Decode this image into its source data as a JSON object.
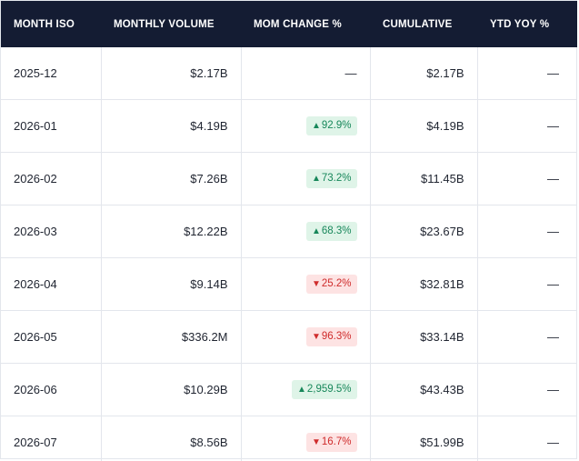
{
  "columns": [
    "MONTH ISO",
    "MONTHLY VOLUME",
    "MOM CHANGE %",
    "CUMULATIVE",
    "YTD YOY %"
  ],
  "rows": [
    {
      "month": "2025-12",
      "volume": "$2.17B",
      "mom": "—",
      "mom_dir": "none",
      "cumulative": "$2.17B",
      "ytd": "—"
    },
    {
      "month": "2026-01",
      "volume": "$4.19B",
      "mom": "92.9%",
      "mom_dir": "up",
      "cumulative": "$4.19B",
      "ytd": "—"
    },
    {
      "month": "2026-02",
      "volume": "$7.26B",
      "mom": "73.2%",
      "mom_dir": "up",
      "cumulative": "$11.45B",
      "ytd": "—"
    },
    {
      "month": "2026-03",
      "volume": "$12.22B",
      "mom": "68.3%",
      "mom_dir": "up",
      "cumulative": "$23.67B",
      "ytd": "—"
    },
    {
      "month": "2026-04",
      "volume": "$9.14B",
      "mom": "25.2%",
      "mom_dir": "down",
      "cumulative": "$32.81B",
      "ytd": "—"
    },
    {
      "month": "2026-05",
      "volume": "$336.2M",
      "mom": "96.3%",
      "mom_dir": "down",
      "cumulative": "$33.14B",
      "ytd": "—"
    },
    {
      "month": "2026-06",
      "volume": "$10.29B",
      "mom": "2,959.5%",
      "mom_dir": "up",
      "cumulative": "$43.43B",
      "ytd": "—"
    },
    {
      "month": "2026-07",
      "volume": "$8.56B",
      "mom": "16.7%",
      "mom_dir": "down",
      "cumulative": "$51.99B",
      "ytd": "—"
    }
  ],
  "colors": {
    "header_bg": "#141c33",
    "up_text": "#17875a",
    "up_bg": "#dff4e8",
    "down_text": "#cf2b2b",
    "down_bg": "#fde3e3"
  }
}
